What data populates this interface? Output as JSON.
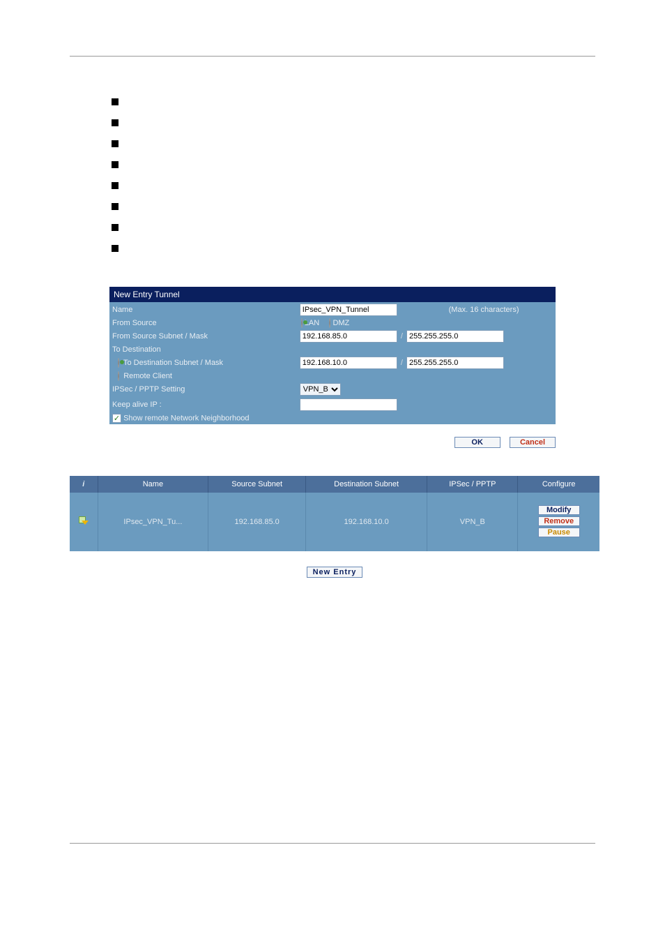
{
  "bullets_count": 8,
  "form": {
    "title": "New Entry Tunnel",
    "name_label": "Name",
    "name_value": "IPsec_VPN_Tunnel",
    "name_hint": "(Max. 16 characters)",
    "from_source_label": "From Source",
    "lan_label": "LAN",
    "dmz_label": "DMZ",
    "lan_selected": true,
    "src_subnet_label": "From Source Subnet / Mask",
    "src_subnet_ip": "192.168.85.0",
    "src_subnet_mask": "255.255.255.0",
    "to_dest_label": "To Destination",
    "dest_subnet_radio": "To Destination Subnet / Mask",
    "dest_subnet_selected": true,
    "dest_subnet_ip": "192.168.10.0",
    "dest_subnet_mask": "255.255.255.0",
    "remote_client_radio": "Remote Client",
    "ipsec_pptp_label": "IPSec / PPTP Setting",
    "ipsec_pptp_value": "VPN_B",
    "keepalive_label": "Keep alive IP :",
    "keepalive_value": "",
    "show_nn_label": "Show remote Network Neighborhood",
    "show_nn_checked": true,
    "ok_label": "OK",
    "cancel_label": "Cancel"
  },
  "grid": {
    "columns": {
      "i": "i",
      "name": "Name",
      "src": "Source Subnet",
      "dst": "Destination Subnet",
      "ipsec": "IPSec / PPTP",
      "cfg": "Configure"
    },
    "row": {
      "name": "IPsec_VPN_Tu...",
      "src": "192.168.85.0",
      "dst": "192.168.10.0",
      "ipsec": "VPN_B"
    },
    "cfg_modify": "Modify",
    "cfg_remove": "Remove",
    "cfg_pause": "Pause",
    "new_entry": "New  Entry"
  },
  "colors": {
    "header_bg": "#0a1f5e",
    "row_bg": "#6b9bbf",
    "grid_hdr": "#4c6f9b"
  }
}
